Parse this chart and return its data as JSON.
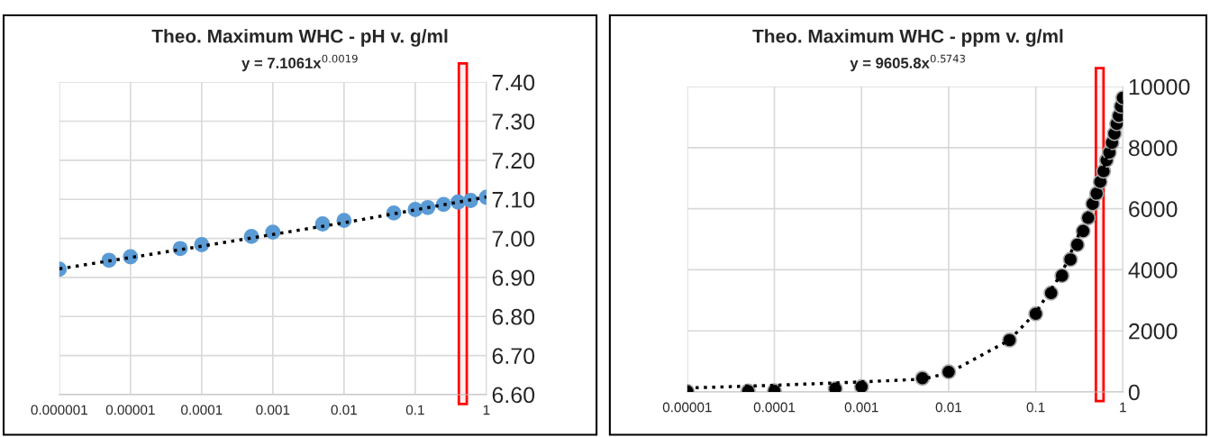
{
  "chart_data": [
    {
      "type": "scatter",
      "title": "Theo. Maximum WHC - pH v. g/ml",
      "subtitle": "y = 7.1061x$^{0.0019}$",
      "log": "x",
      "grid": true,
      "marker": "circle",
      "xlim": [
        1e-06,
        1
      ],
      "xticks": [
        {
          "value": 1e-06,
          "label": "0.000001"
        },
        {
          "value": 1e-05,
          "label": "0.00001"
        },
        {
          "value": 0.0001,
          "label": "0.0001"
        },
        {
          "value": 0.001,
          "label": "0.001"
        },
        {
          "value": 0.01,
          "label": "0.01"
        },
        {
          "value": 0.1,
          "label": "0.1"
        },
        1
      ],
      "bands": [
        {
          "axis": "x",
          "from": 0.41,
          "to": 0.53,
          "color": "#ff0000"
        }
      ],
      "ylim": [
        6.6,
        7.4
      ],
      "yticks": [
        {
          "value": 6.6,
          "label": "6.60"
        },
        {
          "value": 6.7,
          "label": "6.70"
        },
        {
          "value": 6.8,
          "label": "6.80"
        },
        {
          "value": 6.9,
          "label": "6.90"
        },
        {
          "value": 7.0,
          "label": "7.00"
        },
        {
          "value": 7.1,
          "label": "7.10"
        },
        {
          "value": 7.2,
          "label": "7.20"
        },
        {
          "value": 7.3,
          "label": "7.30"
        },
        {
          "value": 7.4,
          "label": "7.40"
        }
      ],
      "series": [
        {
          "color": "#5b9bd5",
          "x": [
            1e-06,
            5e-06,
            1e-05,
            5e-05,
            0.0001,
            0.0005,
            0.001,
            0.005,
            0.01,
            0.05,
            0.1,
            0.15,
            0.25,
            0.4,
            0.6,
            1
          ],
          "values": [
            6.921,
            6.944,
            6.953,
            6.974,
            6.984,
            7.005,
            7.016,
            7.037,
            7.046,
            7.065,
            7.074,
            7.079,
            7.087,
            7.093,
            7.097,
            7.105
          ]
        },
        {
          "type": "line",
          "color": "#000000",
          "line_style": "dotted",
          "marker": "none",
          "x": [
            1e-06,
            0.0001,
            0.01,
            1
          ],
          "values": [
            6.922,
            6.98,
            7.04,
            7.106
          ]
        }
      ]
    },
    {
      "type": "scatter",
      "title": "Theo. Maximum WHC - ppm v. g/ml",
      "subtitle": "y = 9605.8x$^{0.5743}$",
      "log": "x",
      "grid": true,
      "marker": "circle",
      "xlim": [
        1e-05,
        1
      ],
      "xticks": [
        {
          "value": 1e-05,
          "label": "0.00001"
        },
        {
          "value": 0.0001,
          "label": "0.0001"
        },
        {
          "value": 0.001,
          "label": "0.001"
        },
        {
          "value": 0.01,
          "label": "0.01"
        },
        {
          "value": 0.1,
          "label": "0.1"
        },
        1
      ],
      "bands": [
        {
          "axis": "x",
          "from": 0.49,
          "to": 0.6,
          "color": "#ff0000"
        }
      ],
      "ylim": [
        0,
        10000
      ],
      "yticks": [
        0,
        2000,
        4000,
        6000,
        8000,
        10000
      ],
      "series": [
        {
          "color": "#000000",
          "x": [
            1e-05,
            5e-05,
            0.0001,
            0.0005,
            0.001,
            0.005,
            0.01,
            0.05,
            0.1,
            0.15,
            0.2,
            0.25,
            0.3,
            0.35,
            0.4,
            0.45,
            0.5,
            0.55,
            0.6,
            0.65,
            0.7,
            0.75,
            0.8,
            0.85,
            0.9,
            0.95,
            1
          ],
          "values": [
            20,
            30,
            40,
            110,
            170,
            450,
            660,
            1700,
            2560,
            3240,
            3810,
            4340,
            4820,
            5270,
            5700,
            6160,
            6500,
            6880,
            7230,
            7590,
            7840,
            8160,
            8460,
            8780,
            9040,
            9350,
            9630
          ]
        },
        {
          "type": "line",
          "color": "#000000",
          "line_style": "dotted",
          "marker": "none",
          "x": [
            1e-05,
            0.0001,
            0.001,
            0.005,
            0.01,
            0.05,
            0.1,
            0.2,
            0.5,
            1
          ],
          "values": [
            130,
            220,
            330,
            420,
            620,
            1700,
            2600,
            3900,
            6500,
            9600
          ]
        }
      ]
    }
  ]
}
